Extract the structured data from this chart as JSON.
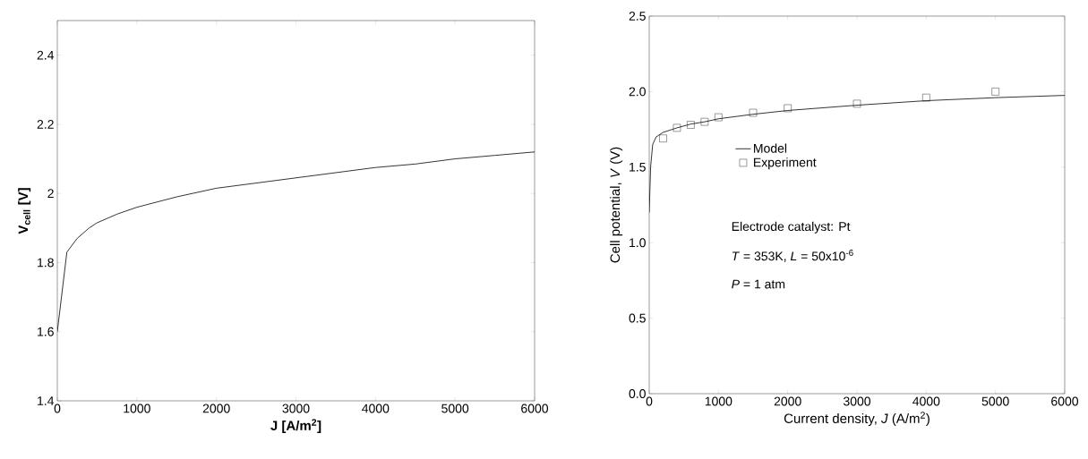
{
  "chart_data": [
    {
      "type": "line",
      "xlabel": "**J  [A/m$^{2}$]**",
      "ylabel": "**V$_{cell}$  [V]**",
      "xlim": [
        0,
        6000
      ],
      "ylim": [
        1.4,
        2.5
      ],
      "xticks": [
        0,
        1000,
        2000,
        3000,
        4000,
        5000,
        6000
      ],
      "yticks": [
        1.4,
        1.6,
        1.8,
        2,
        2.2,
        2.4
      ],
      "grid": false,
      "legend": false,
      "series": [
        {
          "color": "#000000",
          "x": [
            0,
            120,
            250,
            400,
            500,
            750,
            1000,
            1500,
            2000,
            2500,
            3000,
            3500,
            4000,
            4500,
            5000,
            5500,
            6000
          ],
          "values": [
            1.6,
            1.83,
            1.87,
            1.9,
            1.915,
            1.94,
            1.96,
            1.99,
            2.015,
            2.03,
            2.045,
            2.06,
            2.075,
            2.085,
            2.1,
            2.11,
            2.12
          ]
        }
      ]
    },
    {
      "type": "line",
      "xlabel": "Current density, *J* (A/m$^{2}$)",
      "ylabel": "Cell potential, *V* (V)",
      "xlim": [
        0,
        6000
      ],
      "ylim": [
        0,
        2.5
      ],
      "xticks": [
        0,
        1000,
        2000,
        3000,
        4000,
        5000,
        6000
      ],
      "yticks": [
        {
          "value": 0,
          "label": "0.0"
        },
        0.5,
        {
          "value": 1,
          "label": "1.0"
        },
        1.5,
        {
          "value": 2,
          "label": "2.0"
        },
        2.5
      ],
      "grid": false,
      "legend": "left",
      "annotations": [
        "Electrode catalyst: Pt",
        "*T* = 353K, *L* = 50x10$^{-6}$",
        "*P* = 1 atm"
      ],
      "series": [
        {
          "name": "Model",
          "color": "#000000",
          "x": [
            0,
            20,
            50,
            100,
            200,
            400,
            600,
            800,
            1000,
            1500,
            2000,
            3000,
            4000,
            5000,
            6000
          ],
          "values": [
            1.2,
            1.5,
            1.65,
            1.7,
            1.73,
            1.76,
            1.785,
            1.8,
            1.82,
            1.85,
            1.875,
            1.91,
            1.94,
            1.96,
            1.975
          ]
        },
        {
          "name": "Experiment",
          "type": "scatter",
          "marker": "square",
          "color": "#000000",
          "x": [
            200,
            400,
            600,
            800,
            1000,
            1500,
            2000,
            3000,
            4000,
            5000
          ],
          "values": [
            1.69,
            1.76,
            1.78,
            1.8,
            1.83,
            1.86,
            1.89,
            1.92,
            1.96,
            2.0
          ]
        }
      ]
    }
  ]
}
